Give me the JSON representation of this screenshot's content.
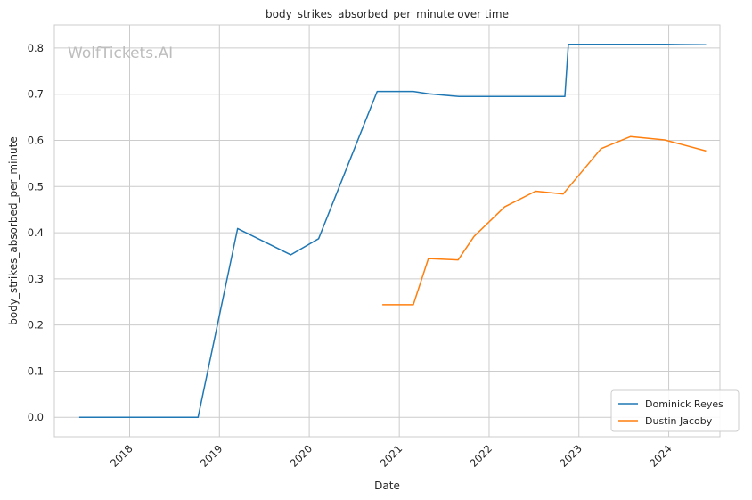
{
  "chart_data": {
    "type": "line",
    "title": "body_strikes_absorbed_per_minute over time",
    "xlabel": "Date",
    "ylabel": "body_strikes_absorbed_per_minute",
    "watermark": "WolfTickets.AI",
    "xlim": [
      "2017-03-01",
      "2024-07-27"
    ],
    "ylim": [
      -0.042,
      0.85
    ],
    "x_ticks": [
      "2018",
      "2019",
      "2020",
      "2021",
      "2022",
      "2023",
      "2024"
    ],
    "y_ticks": [
      "0.0",
      "0.1",
      "0.2",
      "0.3",
      "0.4",
      "0.5",
      "0.6",
      "0.7",
      "0.8"
    ],
    "grid": true,
    "legend_position": "lower-right",
    "series": [
      {
        "name": "Dominick Reyes",
        "color": "#1f77b4",
        "points": [
          [
            "2017-06-10",
            0.0
          ],
          [
            "2018-10-06",
            0.0
          ],
          [
            "2019-03-16",
            0.409
          ],
          [
            "2019-10-18",
            0.352
          ],
          [
            "2020-02-08",
            0.387
          ],
          [
            "2020-10-03",
            0.706
          ],
          [
            "2021-02-27",
            0.706
          ],
          [
            "2021-05-01",
            0.701
          ],
          [
            "2021-09-01",
            0.695
          ],
          [
            "2022-11-05",
            0.695
          ],
          [
            "2022-11-19",
            0.808
          ],
          [
            "2023-12-15",
            0.808
          ],
          [
            "2024-06-01",
            0.807
          ]
        ]
      },
      {
        "name": "Dustin Jacoby",
        "color": "#ff7f0e",
        "points": [
          [
            "2020-10-24",
            0.244
          ],
          [
            "2021-02-27",
            0.244
          ],
          [
            "2021-04-29",
            0.344
          ],
          [
            "2021-08-28",
            0.341
          ],
          [
            "2021-11-01",
            0.392
          ],
          [
            "2022-03-05",
            0.456
          ],
          [
            "2022-07-09",
            0.49
          ],
          [
            "2022-10-29",
            0.484
          ],
          [
            "2023-04-01",
            0.582
          ],
          [
            "2023-07-29",
            0.608
          ],
          [
            "2023-12-15",
            0.601
          ],
          [
            "2024-06-01",
            0.577
          ]
        ]
      }
    ]
  }
}
